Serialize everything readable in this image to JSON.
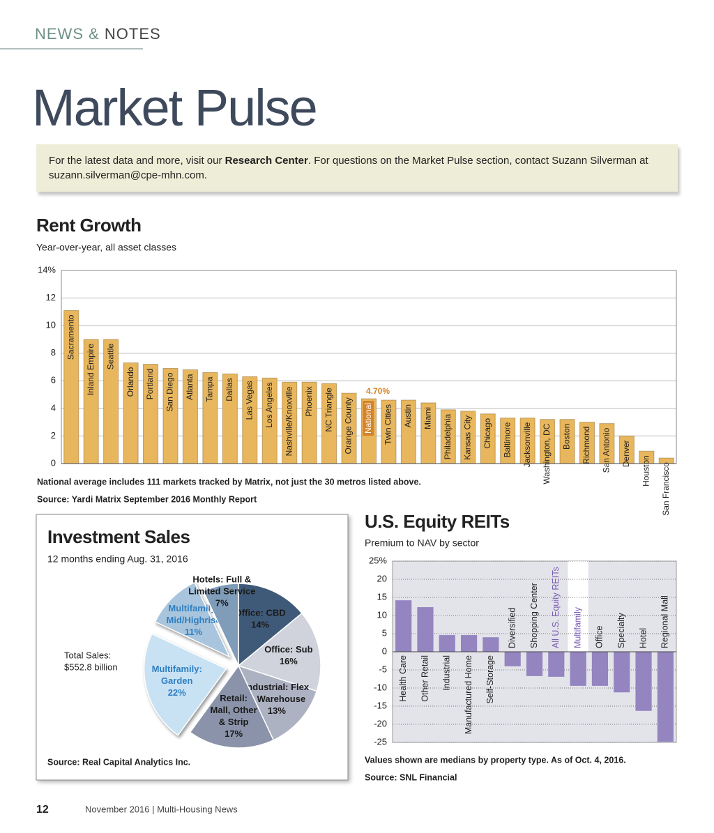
{
  "header": {
    "section": [
      "NEWS &",
      "NOTES"
    ],
    "title": "Market Pulse"
  },
  "info": {
    "parts": [
      "For the latest data and more, visit our ",
      "Research Center",
      ". For questions on the Market Pulse section, contact Suzann Silverman at suzann.silverman@cpe-mhn.com."
    ]
  },
  "chart_data": [
    {
      "type": "bar",
      "title": "Rent Growth",
      "subtitle": "Year-over-year, all asset classes",
      "categories": [
        "Sacramento",
        "Inland Empire",
        "Seattle",
        "Orlando",
        "Portland",
        "San Diego",
        "Atlanta",
        "Tampa",
        "Dallas",
        "Las Vegas",
        "Los Angeles",
        "Nashville/Knoxville",
        "Phoenix",
        "NC Triangle",
        "Orange County",
        "National",
        "Twin Cities",
        "Austin",
        "Miami",
        "Philadelphia",
        "Kansas City",
        "Chicago",
        "Baltimore",
        "Jacksonville",
        "Washington, DC",
        "Boston",
        "Richmond",
        "San Antonio",
        "Denver",
        "Houston",
        "San Francisco"
      ],
      "values": [
        11.1,
        9.0,
        9.0,
        7.3,
        7.2,
        6.9,
        6.8,
        6.6,
        6.5,
        6.3,
        6.2,
        5.9,
        5.9,
        5.8,
        5.1,
        4.7,
        4.6,
        4.6,
        4.4,
        3.9,
        3.8,
        3.6,
        3.3,
        3.3,
        3.2,
        3.2,
        3.0,
        2.9,
        2.0,
        0.9,
        0.4
      ],
      "value_labels": [
        null,
        null,
        null,
        null,
        null,
        null,
        null,
        null,
        null,
        null,
        null,
        null,
        null,
        null,
        null,
        "4.70%",
        null,
        null,
        null,
        null,
        null,
        null,
        null,
        null,
        null,
        null,
        null,
        null,
        null,
        null,
        null
      ],
      "color": "#e8b65c",
      "highlight": [
        15
      ],
      "highlight_color": "#d4842a",
      "ylim": [
        0,
        14
      ],
      "yticks": [
        0,
        2,
        4,
        6,
        8,
        10,
        12,
        {
          "value": 14,
          "label": "14%"
        }
      ],
      "grid": true,
      "notes": [
        "National average includes 111 markets tracked by Matrix, not just the 30 metros listed above.",
        "Source: Yardi Matrix September 2016 Monthly Report"
      ]
    },
    {
      "type": "pie",
      "title": "Investment Sales",
      "subtitle": "12 months ending Aug. 31, 2016",
      "categories": [
        [
          "Office: CBD"
        ],
        [
          "Office: Sub"
        ],
        [
          "Industrial: Flex",
          "& Warehouse"
        ],
        [
          "Retail:",
          "Mall, Other",
          "& Strip"
        ],
        [
          "Multifamily:",
          "Garden"
        ],
        [
          "Multifamily:",
          "Mid/Highrise"
        ],
        [
          "Hotels: Full &",
          "Limited Service"
        ]
      ],
      "values": [
        14,
        16,
        13,
        17,
        22,
        11,
        7
      ],
      "value_labels": [
        "14%",
        "16%",
        "13%",
        "17%",
        "22%",
        "11%",
        "7%"
      ],
      "colors": [
        "#3f5a78",
        "#d0d3dc",
        "#adb2c3",
        "#8a93a9",
        "#c8e2f4",
        "#a8c5dd",
        "#7f9cb9"
      ],
      "label_colors": [
        "#1a1a1a",
        "#1a1a1a",
        "#1a1a1a",
        "#1a1a1a",
        "#2f7fc1",
        "#2f7fc1",
        "#1a1a1a"
      ],
      "explode": [
        4,
        5
      ],
      "annotation": [
        "Total Sales:",
        "$552.8 billion"
      ],
      "source": "Source: Real Capital Analytics Inc."
    },
    {
      "type": "bar",
      "title": "U.S. Equity REITs",
      "subtitle": "Premium to NAV by sector",
      "categories": [
        "Health Care",
        "Other Retail",
        "Industrial",
        "Manufactured Home",
        "Self-Storage",
        "Diversified",
        "Shopping Center",
        "All U.S. Equity REITs",
        "Multifamily",
        "Office",
        "Specialty",
        "Hotel",
        "Regional Mall"
      ],
      "values": [
        14.2,
        12.3,
        4.6,
        4.6,
        4.0,
        -4.0,
        -6.7,
        -6.9,
        -9.4,
        -9.4,
        -11.2,
        -16.3,
        -24.8
      ],
      "color": "#9484c0",
      "highlight": [
        7,
        8
      ],
      "highlight_color": "#7a5cb0",
      "band_highlight": [
        8
      ],
      "ylim": [
        -25,
        25
      ],
      "yticks": [
        -25,
        -20,
        -15,
        -10,
        -5,
        0,
        5,
        10,
        15,
        20,
        {
          "value": 25,
          "label": "25%"
        }
      ],
      "grid": true,
      "notes": [
        "Values shown are medians by property type. As of Oct. 4, 2016.",
        "Source: SNL Financial"
      ]
    }
  ],
  "footer": {
    "page": "12",
    "text": "November 2016 | Multi-Housing News"
  }
}
